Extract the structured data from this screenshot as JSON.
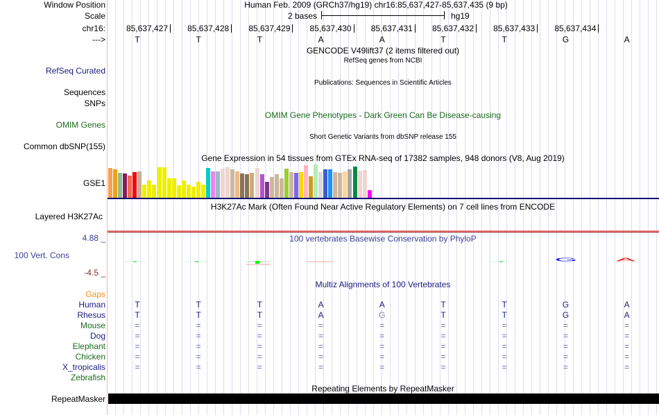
{
  "labels": {
    "window_position": "Window Position",
    "scale": "Scale",
    "chr": "chr16:",
    "strand": "--->",
    "refseq": "RefSeq Curated",
    "sequences": "Sequences",
    "snps": "SNPs",
    "omim_genes": "OMIM Genes",
    "common_dbsnp": "Common dbSNP(155)",
    "gse1": "GSE1",
    "layered": "Layered H3K27Ac",
    "cons": "100 Vert. Cons",
    "cons_max": "4.88 _",
    "cons_min": "-4.5 _",
    "repeatmasker": "RepeatMasker"
  },
  "header": {
    "assembly": "Human Feb. 2009 (GRCh37/hg19)   chr16:85,637,427-85,637,435 (9 bp)",
    "scale_text": "2 bases",
    "scale_db": "hg19"
  },
  "positions": [
    "85,637,427",
    "85,637,428",
    "85,637,429",
    "85,637,430",
    "85,637,431",
    "85,637,432",
    "85,637,433",
    "85,637,434"
  ],
  "sequence": [
    "T",
    "T",
    "T",
    "A",
    "A",
    "T",
    "T",
    "G",
    "A"
  ],
  "tracks": {
    "gencode": "GENCODE V49lift37 (2 items filtered out)",
    "refseq_sub": "RefSeq genes from NCBI",
    "publications": "Publications: Sequences in Scientific Articles",
    "omim": "OMIM Gene Phenotypes - Dark Green Can Be Disease-causing",
    "short_variants": "Short Genetic Variants from dbSNP release 155",
    "gtex": "Gene Expression in 54 tissues from GTEx RNA-seq of 17382 samples, 948 donors (V8, Aug 2019)",
    "h3k27ac": "H3K27Ac Mark (Often Found Near Active Regulatory Elements) on 7 cell lines from ENCODE",
    "phylop": "100 vertebrates Basewise Conservation by PhyloP",
    "multiz": "Multiz Alignments of 100 Vertebrates",
    "repeating": "Repeating Elements by RepeatMasker"
  },
  "multiz": {
    "gaps_label": "Gaps",
    "species": [
      {
        "name": "Human",
        "color": "#1a1a80",
        "bases": [
          "T",
          "T",
          "T",
          "A",
          "A",
          "T",
          "T",
          "G",
          "A"
        ]
      },
      {
        "name": "Rhesus",
        "color": "#1a1a80",
        "bases": [
          "T",
          "T",
          "T",
          "A",
          "G",
          "T",
          "T",
          "G",
          "A"
        ]
      },
      {
        "name": "Mouse",
        "color": "#1a6a1a",
        "bases": [
          "=",
          "=",
          "=",
          "=",
          "=",
          "=",
          "=",
          "=",
          "="
        ]
      },
      {
        "name": "Dog",
        "color": "#1a1a80",
        "bases": [
          "=",
          "=",
          "=",
          "=",
          "=",
          "=",
          "=",
          "=",
          "="
        ]
      },
      {
        "name": "Elephant",
        "color": "#1a6a1a",
        "bases": [
          "=",
          "=",
          "=",
          "=",
          "=",
          "=",
          "=",
          "=",
          "="
        ]
      },
      {
        "name": "Chicken",
        "color": "#1a6a1a",
        "bases": [
          "=",
          "=",
          "=",
          "=",
          "=",
          "=",
          "=",
          "=",
          "="
        ]
      },
      {
        "name": "X_tropicalis",
        "color": "#1a1a80",
        "bases": [
          "=",
          "=",
          "=",
          "=",
          "=",
          "=",
          "=",
          "=",
          "="
        ]
      },
      {
        "name": "Zebrafish",
        "color": "#1a6a1a",
        "bases": []
      }
    ]
  },
  "gtex_bars": {
    "colors": [
      "#f9a150",
      "#f0a010",
      "#8fbc8f",
      "#8b1a5a",
      "#ee6a50",
      "#ff0000",
      "#c8ad9b",
      "#eeee00",
      "#eeee00",
      "#eeee00",
      "#eeee00",
      "#eeee00",
      "#eeee00",
      "#eeee00",
      "#eeee00",
      "#eeee00",
      "#eeee00",
      "#eeee00",
      "#eeee00",
      "#eeee00",
      "#00cdcd",
      "#ee82ee",
      "#9ab9c9",
      "#eed5d2",
      "#eed5d2",
      "#cdb79e",
      "#eebb88",
      "#8b7355",
      "#8b7355",
      "#cdaa7d",
      "#eed5d2",
      "#b452cd",
      "#7a378b",
      "#cdb79e",
      "#cdb79e",
      "#cdb79e",
      "#9acd32",
      "#cdb79e",
      "#7b68ee",
      "#ffd700",
      "#ffb6c1",
      "#cd9b1d",
      "#b4eeb4",
      "#d9d9d9",
      "#3a5fcd",
      "#1e90ff",
      "#cdb79e",
      "#cdb79e",
      "#ffd39b",
      "#a6a6a6",
      "#008b45",
      "#eed5d2",
      "#eed5d2",
      "#ff00ff"
    ],
    "values": [
      0.9,
      0.86,
      0.76,
      0.73,
      0.66,
      0.78,
      0.8,
      0.4,
      0.52,
      0.4,
      0.92,
      0.92,
      0.58,
      0.58,
      0.38,
      0.52,
      0.4,
      0.33,
      0.48,
      0.4,
      0.9,
      0.8,
      0.8,
      0.88,
      0.92,
      0.86,
      0.8,
      0.73,
      0.71,
      0.76,
      0.9,
      0.71,
      0.47,
      0.63,
      0.71,
      0.58,
      0.88,
      0.78,
      0.76,
      0.78,
      0.98,
      0.65,
      1.0,
      0.78,
      0.86,
      0.86,
      0.78,
      0.76,
      0.8,
      0.86,
      0.94,
      0.82,
      0.84,
      0.22
    ]
  }
}
